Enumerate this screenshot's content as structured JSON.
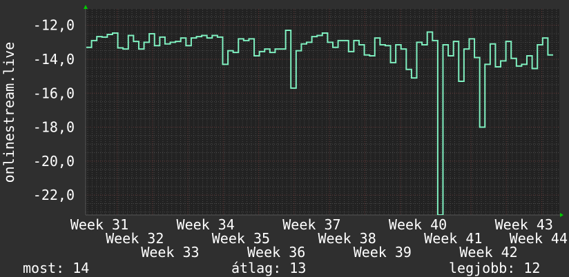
{
  "chart_data": {
    "type": "line",
    "step": true,
    "ylabel": "onlinestream.live",
    "xlabel": "",
    "ylim": [
      -23.17,
      -11.04
    ],
    "yticks": [
      -12.0,
      -14.0,
      -16.0,
      -18.0,
      -20.0,
      -22.0
    ],
    "ytick_labels": [
      "-12,0",
      "-14,0",
      "-16,0",
      "-18,0",
      "-20,0",
      "-22,0"
    ],
    "xtick_labels": [
      "Week 31",
      "Week 32",
      "Week 33",
      "Week 34",
      "Week 35",
      "Week 36",
      "Week 37",
      "Week 38",
      "Week 39",
      "Week 40",
      "Week 41",
      "Week 42",
      "Week 43",
      "Week 44"
    ],
    "grid": true,
    "colors": {
      "line": "#7ff0c0",
      "background": "#2f2f2f",
      "plot_background": "#222222",
      "major_grid": "#6a3a3a",
      "minor_grid": "#4a4a4a",
      "arrow": "#00cc00"
    },
    "series": [
      {
        "values": [
          -13.3,
          -12.9,
          -12.67,
          -12.7,
          -12.54,
          -12.46,
          -13.33,
          -13.4,
          -12.6,
          -12.95,
          -13.4,
          -13.0,
          -12.5,
          -13.2,
          -12.7,
          -13.1,
          -13.0,
          -12.95,
          -12.75,
          -13.2,
          -12.75,
          -12.67,
          -12.6,
          -12.75,
          -12.6,
          -12.7,
          -14.3,
          -13.5,
          -13.6,
          -12.8,
          -12.9,
          -12.8,
          -13.8,
          -13.55,
          -13.4,
          -13.6,
          -13.4,
          -13.4,
          -12.3,
          -15.7,
          -13.5,
          -13.1,
          -13.0,
          -12.67,
          -12.6,
          -12.46,
          -13.0,
          -13.3,
          -12.9,
          -12.9,
          -13.55,
          -12.9,
          -13.15,
          -13.75,
          -13.8,
          -12.75,
          -13.15,
          -13.2,
          -14.2,
          -13.15,
          -13.4,
          -14.6,
          -15.1,
          -13.0,
          -13.15,
          -12.4,
          -12.9,
          -24.0,
          -13.15,
          -13.8,
          -12.95,
          -15.3,
          -13.4,
          -12.8,
          -13.9,
          -18.0,
          -14.3,
          -13.1,
          -14.45,
          -14.1,
          -12.95,
          -13.95,
          -14.4,
          -14.3,
          -13.8,
          -14.55,
          -13.15,
          -12.75,
          -13.75
        ]
      }
    ]
  },
  "footer": {
    "current": "most: 14",
    "average": "átlag: 13",
    "best": "legjobb: 12"
  }
}
